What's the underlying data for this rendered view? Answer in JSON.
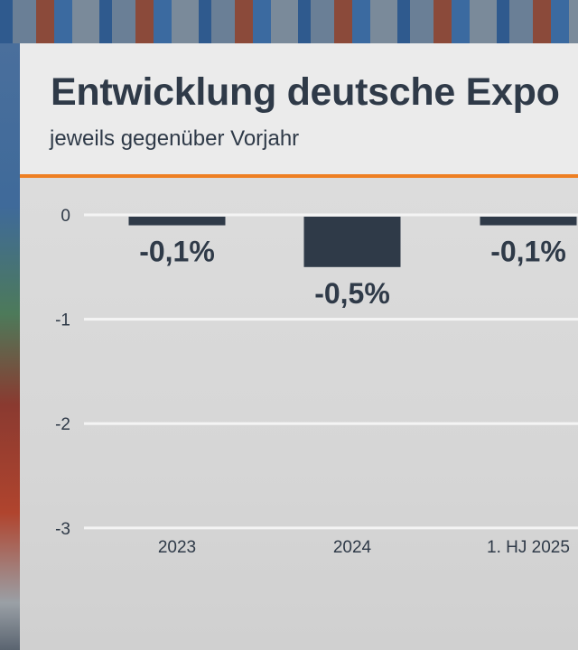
{
  "chart_data": {
    "type": "bar",
    "title": "Entwicklung deutsche Expo",
    "subtitle": "jeweils gegenüber Vorjahr",
    "categories": [
      "2023",
      "2024",
      "1. HJ 2025"
    ],
    "values": [
      -0.1,
      -0.5,
      -0.1
    ],
    "data_labels": [
      "-0,1%",
      "-0,5%",
      "-0,1%"
    ],
    "yticks": [
      0,
      -1,
      -2,
      -3
    ],
    "ytick_labels": [
      "0",
      "-1",
      "-2",
      "-3"
    ],
    "ylim": [
      -3,
      0
    ],
    "grid": true,
    "xlabel": "",
    "ylabel": ""
  },
  "colors": {
    "bar": "#2f3a48",
    "accent": "#ee7f22",
    "grid": "#f4f4f4",
    "text": "#2f3a48"
  }
}
